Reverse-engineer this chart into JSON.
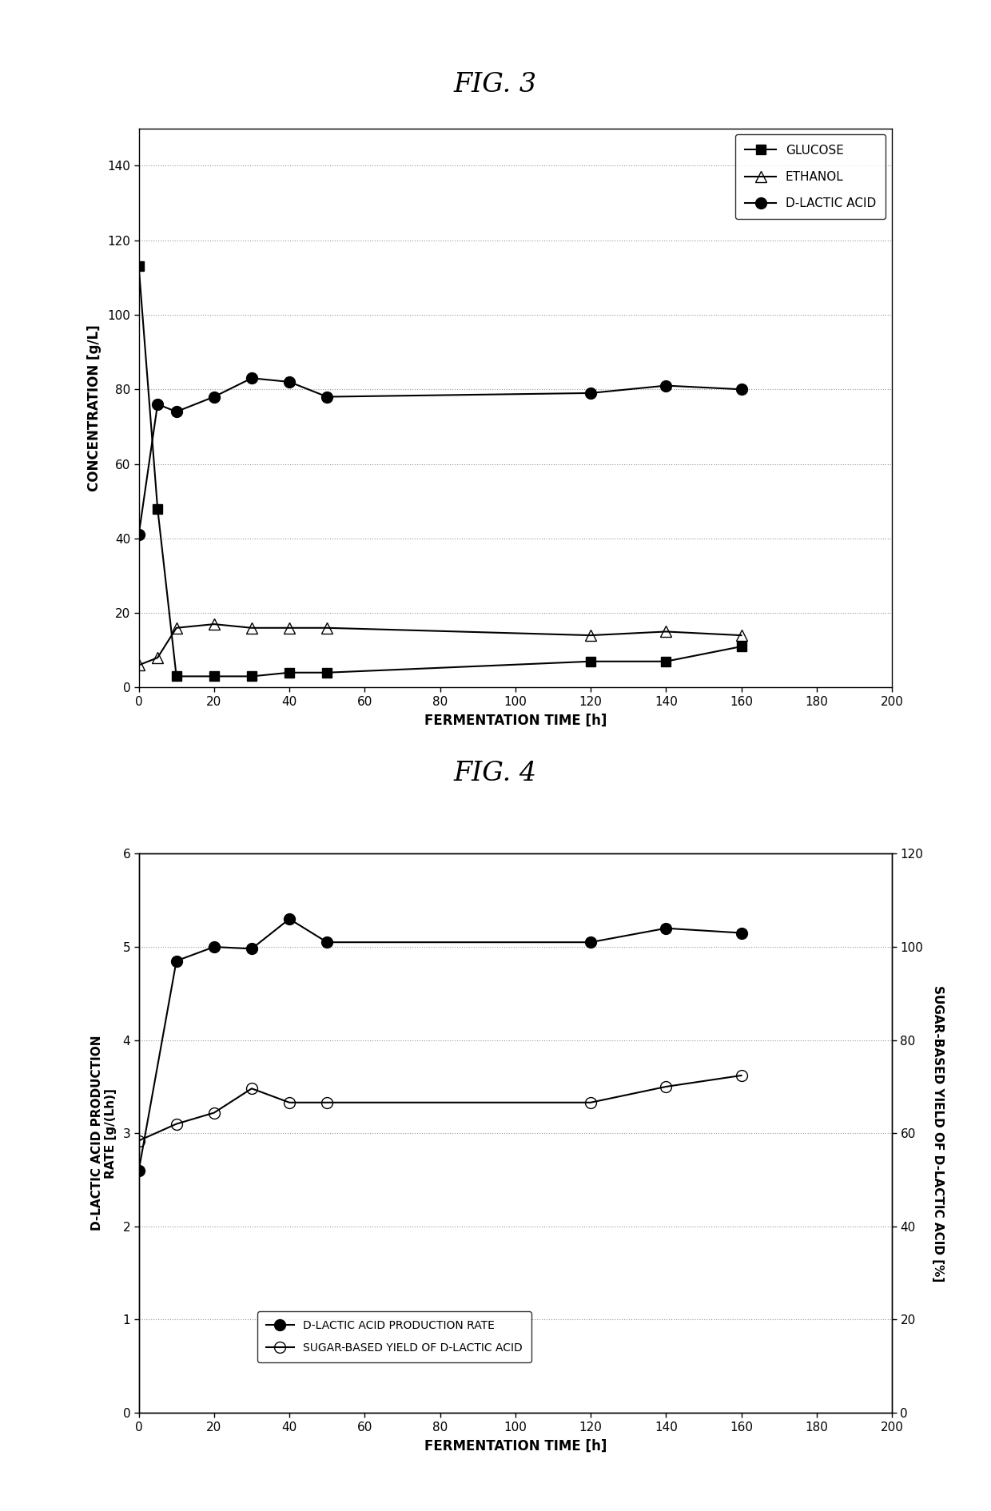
{
  "fig3": {
    "title": "FIG. 3",
    "xlabel": "FERMENTATION TIME [h]",
    "ylabel": "CONCENTRATION [g/L]",
    "xlim": [
      0,
      200
    ],
    "ylim": [
      0,
      150
    ],
    "xticks": [
      0,
      20,
      40,
      60,
      80,
      100,
      120,
      140,
      160,
      180,
      200
    ],
    "yticks": [
      0,
      20,
      40,
      60,
      80,
      100,
      120,
      140
    ],
    "glucose": {
      "x": [
        0,
        5,
        10,
        20,
        30,
        40,
        50,
        120,
        140,
        160
      ],
      "y": [
        113,
        48,
        3,
        3,
        3,
        4,
        4,
        7,
        7,
        11
      ],
      "label": "GLUCOSE",
      "marker": "s",
      "markersize": 9,
      "fillstyle": "full"
    },
    "ethanol": {
      "x": [
        0,
        5,
        10,
        20,
        30,
        40,
        50,
        120,
        140,
        160
      ],
      "y": [
        6,
        8,
        16,
        17,
        16,
        16,
        16,
        14,
        15,
        14
      ],
      "label": "ETHANOL",
      "marker": "^",
      "markersize": 10,
      "fillstyle": "none"
    },
    "dlactic": {
      "x": [
        0,
        5,
        10,
        20,
        30,
        40,
        50,
        120,
        140,
        160
      ],
      "y": [
        41,
        76,
        74,
        78,
        83,
        82,
        78,
        79,
        81,
        80
      ],
      "label": "D-LACTIC ACID",
      "marker": "o",
      "markersize": 10,
      "fillstyle": "full"
    }
  },
  "fig4": {
    "title": "FIG. 4",
    "xlabel": "FERMENTATION TIME [h]",
    "ylabel_left": "D-LACTIC ACID PRODUCTION\nRATE [g/(Lh)]",
    "ylabel_right": "SUGAR-BASED YIELD OF D-LACTIC ACID [%]",
    "xlim": [
      0,
      200
    ],
    "ylim_left": [
      0,
      6
    ],
    "ylim_right": [
      0,
      120
    ],
    "xticks": [
      0,
      20,
      40,
      60,
      80,
      100,
      120,
      140,
      160,
      180,
      200
    ],
    "yticks_left": [
      0,
      1,
      2,
      3,
      4,
      5,
      6
    ],
    "yticks_right": [
      0,
      20,
      40,
      60,
      80,
      100,
      120
    ],
    "production_rate": {
      "x": [
        0,
        10,
        20,
        30,
        40,
        50,
        120,
        140,
        160
      ],
      "y": [
        2.6,
        4.85,
        5.0,
        4.98,
        5.3,
        5.05,
        5.05,
        5.2,
        5.15
      ],
      "label": "D-LACTIC ACID PRODUCTION RATE",
      "marker": "o",
      "markersize": 10,
      "fillstyle": "full"
    },
    "sugar_yield": {
      "x": [
        0,
        10,
        20,
        30,
        40,
        50,
        120,
        140,
        160
      ],
      "y": [
        58.4,
        62.0,
        64.4,
        69.6,
        66.6,
        66.6,
        66.6,
        70.0,
        72.4
      ],
      "label": "SUGAR-BASED YIELD OF D-LACTIC ACID",
      "marker": "o",
      "markersize": 10,
      "fillstyle": "none"
    }
  }
}
